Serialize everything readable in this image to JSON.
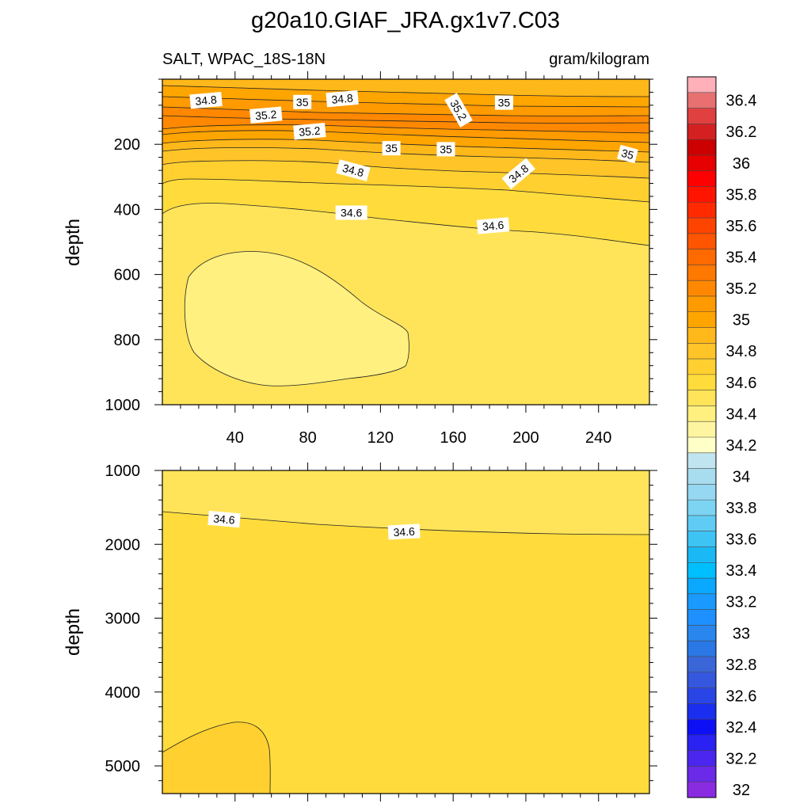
{
  "chart_data": {
    "type": "heatmap",
    "title": "g20a10.GIAF_JRA.gx1v7.C03",
    "variable_label": "SALT, WPAC_18S-18N",
    "units_label": "gram/kilogram",
    "colorbar": {
      "min": 31.9,
      "max": 36.6,
      "levels": [
        32,
        32.1,
        32.2,
        32.3,
        32.4,
        32.5,
        32.6,
        32.7,
        32.8,
        32.9,
        33,
        33.1,
        33.2,
        33.3,
        33.4,
        33.5,
        33.6,
        33.7,
        33.8,
        33.9,
        34,
        34.1,
        34.2,
        34.3,
        34.4,
        34.5,
        34.6,
        34.7,
        34.8,
        34.9,
        35,
        35.1,
        35.2,
        35.3,
        35.4,
        35.5,
        35.6,
        35.7,
        35.8,
        35.9,
        36,
        36.1,
        36.2,
        36.3,
        36.4,
        36.5
      ],
      "tick_labels": [
        "32",
        "32.2",
        "32.4",
        "32.6",
        "32.8",
        "33",
        "33.2",
        "33.4",
        "33.6",
        "33.8",
        "34",
        "34.2",
        "34.4",
        "34.6",
        "34.8",
        "35",
        "35.2",
        "35.4",
        "35.6",
        "35.8",
        "36",
        "36.2",
        "36.4"
      ],
      "colors": [
        "#8a2be2",
        "#6a2ae8",
        "#4b26ee",
        "#2a22f2",
        "#0d10f5",
        "#1a2ef0",
        "#2a45e6",
        "#3557dd",
        "#3a66d8",
        "#2a78e6",
        "#2a86ef",
        "#1f90ff",
        "#1a9aff",
        "#0aa8ff",
        "#00bfff",
        "#1ab8f5",
        "#3dc4f5",
        "#60ccf5",
        "#7cd4f3",
        "#96d8f2",
        "#a8dcef",
        "#c0e5f0",
        "#ffffc8",
        "#fff5a0",
        "#fff080",
        "#ffe45a",
        "#ffdc3c",
        "#ffd030",
        "#ffc428",
        "#ffb81a",
        "#ffa500",
        "#ff9a00",
        "#ff8800",
        "#ff7800",
        "#ff6a00",
        "#ff5500",
        "#ff4400",
        "#ff2a00",
        "#ff1400",
        "#ff0000",
        "#e60000",
        "#cc0000",
        "#d42020",
        "#e04040",
        "#e87070",
        "#ffb0b8"
      ]
    },
    "panels": [
      {
        "name": "upper",
        "ylabel": "depth",
        "ylim": [
          0,
          1000
        ],
        "y_ticks": [
          200,
          400,
          600,
          800,
          1000
        ],
        "y_tick_labels": [
          "200",
          "400",
          "600",
          "800",
          "1000"
        ],
        "xlim": [
          0,
          268
        ],
        "x_ticks": [
          40,
          80,
          120,
          160,
          200,
          240
        ],
        "x_tick_labels": [
          "40",
          "80",
          "120",
          "160",
          "200",
          "240"
        ],
        "contour_labels": [
          {
            "text": "34.8",
            "x": 24,
            "y": 65,
            "angle": -5
          },
          {
            "text": "35.2",
            "x": 57,
            "y": 110,
            "angle": -5
          },
          {
            "text": "35",
            "x": 77,
            "y": 70,
            "angle": 0
          },
          {
            "text": "34.8",
            "x": 99,
            "y": 60,
            "angle": -5
          },
          {
            "text": "35.2",
            "x": 163,
            "y": 95,
            "angle": 60
          },
          {
            "text": "35",
            "x": 188,
            "y": 72,
            "angle": 0
          },
          {
            "text": "35.2",
            "x": 81,
            "y": 160,
            "angle": -5
          },
          {
            "text": "35",
            "x": 126,
            "y": 212,
            "angle": 0
          },
          {
            "text": "35",
            "x": 156,
            "y": 215,
            "angle": 0
          },
          {
            "text": "35",
            "x": 256,
            "y": 230,
            "angle": 15
          },
          {
            "text": "34.8",
            "x": 105,
            "y": 280,
            "angle": 15
          },
          {
            "text": "34.8",
            "x": 196,
            "y": 290,
            "angle": -40
          },
          {
            "text": "34.6",
            "x": 104,
            "y": 410,
            "angle": 0
          },
          {
            "text": "34.6",
            "x": 182,
            "y": 450,
            "angle": -5
          }
        ]
      },
      {
        "name": "lower",
        "ylabel": "depth",
        "ylim": [
          1000,
          5375
        ],
        "y_ticks": [
          1000,
          2000,
          3000,
          4000,
          5000
        ],
        "y_tick_labels": [
          "1000",
          "2000",
          "3000",
          "4000",
          "5000"
        ],
        "xlim": [
          0,
          268
        ],
        "x_ticks": [
          40,
          80,
          120,
          160,
          200,
          240
        ],
        "contour_labels": [
          {
            "text": "34.6",
            "x": 34,
            "y": 1660,
            "angle": 5
          },
          {
            "text": "34.6",
            "x": 133,
            "y": 1830,
            "angle": -3
          }
        ]
      }
    ]
  }
}
